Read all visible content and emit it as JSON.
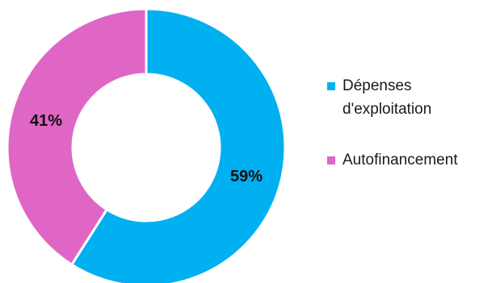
{
  "chart_data": {
    "type": "pie",
    "donut": true,
    "title": "",
    "slices": [
      {
        "label": "Dépenses d'exploitation",
        "value": 59,
        "display": "59%",
        "color": "#00B0F0"
      },
      {
        "label": "Autofinancement",
        "value": 41,
        "display": "41%",
        "color": "#E066C6"
      }
    ],
    "legend_position": "right"
  }
}
